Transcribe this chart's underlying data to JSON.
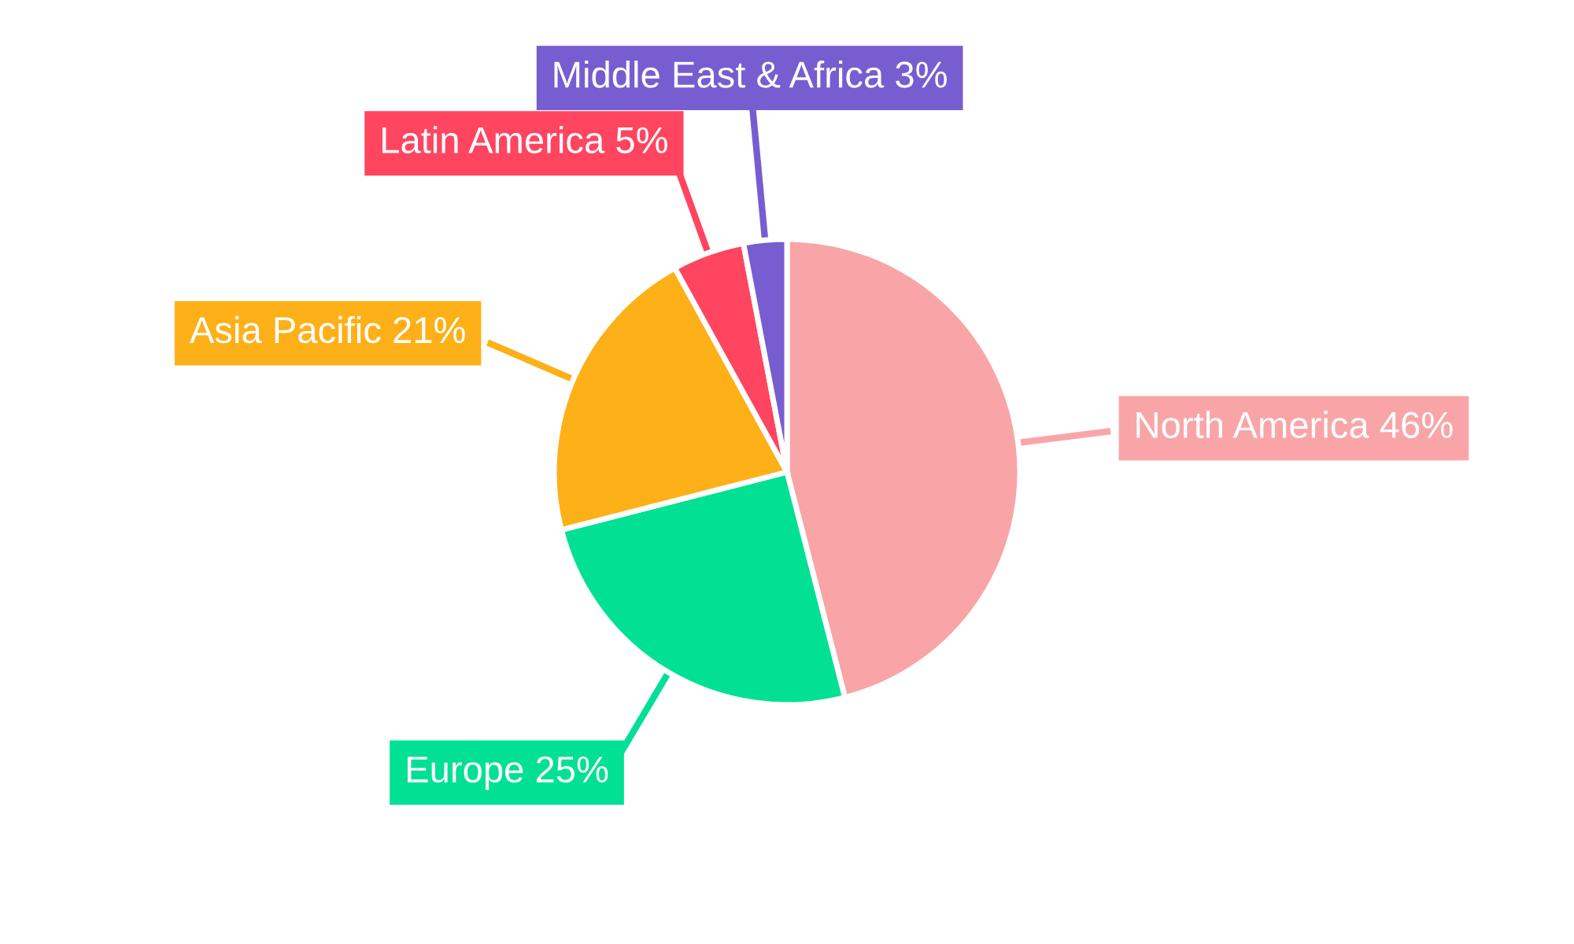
{
  "chart_data": {
    "type": "pie",
    "categories": [
      "North America",
      "Europe",
      "Asia Pacific",
      "Latin America",
      "Middle East & Africa"
    ],
    "values": [
      46,
      25,
      21,
      5,
      3
    ],
    "value_labels": [
      "46%",
      "25%",
      "21%",
      "5%",
      "3%"
    ],
    "colors": [
      "#f9a5a7",
      "#02e094",
      "#feb019",
      "#ff4560",
      "#775dd0"
    ],
    "legend": false
  }
}
